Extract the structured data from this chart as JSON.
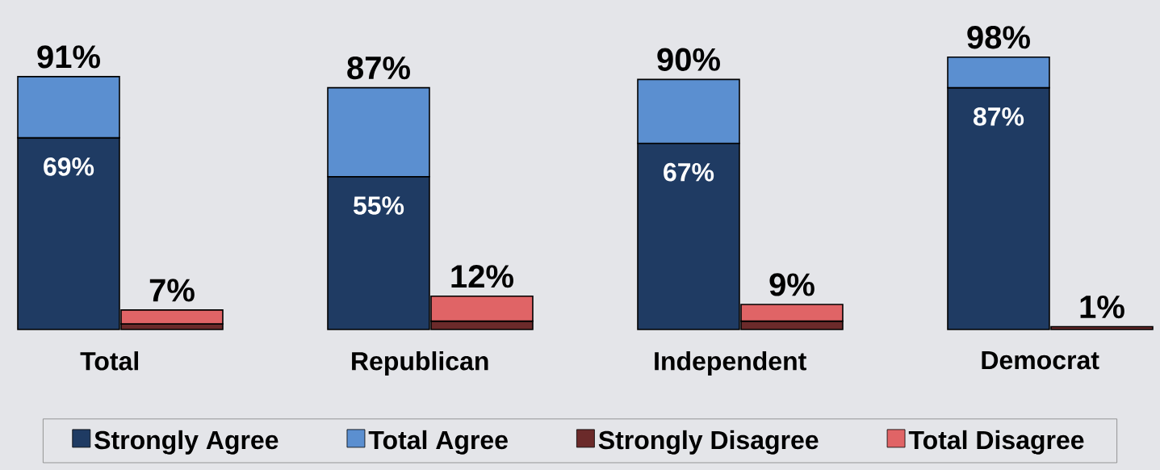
{
  "chart_data": {
    "type": "bar",
    "stacked": true,
    "categories": [
      "Total",
      null,
      null,
      "Republican",
      null,
      null,
      "Independent",
      null,
      null,
      "Democrat",
      null
    ],
    "series": [
      {
        "name": "Strongly Agree",
        "color": "#1f3b63",
        "values": [
          69,
          null,
          null,
          55,
          null,
          null,
          67,
          null,
          null,
          87,
          null
        ],
        "value_labels": [
          "69%",
          null,
          null,
          "55%",
          null,
          null,
          "67%",
          null,
          null,
          "87%",
          null
        ]
      },
      {
        "name": "Total Agree",
        "color": "#5b8fd0",
        "values": [
          22,
          null,
          null,
          32,
          null,
          null,
          23,
          null,
          null,
          11,
          null
        ]
      },
      {
        "name": "Strongly Disagree",
        "color": "#6b2a2a",
        "values": [
          null,
          2,
          null,
          null,
          3,
          null,
          null,
          3,
          null,
          null,
          1
        ]
      },
      {
        "name": "Total Disagree",
        "color": "#e06466",
        "values": [
          null,
          5,
          null,
          null,
          9,
          null,
          null,
          6,
          null,
          null,
          null
        ]
      }
    ],
    "totals": [
      "91%",
      "7%",
      null,
      "87%",
      "12%",
      null,
      "90%",
      "9%",
      null,
      "98%",
      "1%"
    ],
    "legend": "bottom"
  }
}
